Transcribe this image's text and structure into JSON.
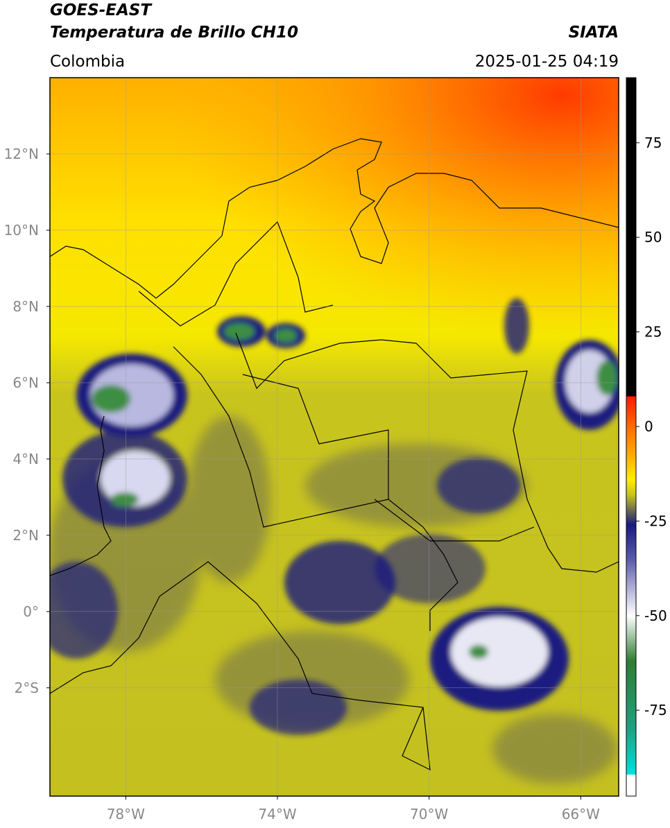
{
  "header": {
    "satellite": "GOES-EAST",
    "product": "Temperatura de Brillo CH10",
    "source": "SIATA",
    "region": "Colombia",
    "datetime": "2025-01-25 04:19"
  },
  "map": {
    "lonlim": [
      -80,
      -65
    ],
    "latlim": [
      -4.84,
      14
    ],
    "xticks": [
      {
        "value": -78,
        "label": "78°W"
      },
      {
        "value": -74,
        "label": "74°W"
      },
      {
        "value": -70,
        "label": "70°W"
      },
      {
        "value": -66,
        "label": "66°W"
      }
    ],
    "yticks": [
      {
        "value": 12,
        "label": "12°N"
      },
      {
        "value": 10,
        "label": "10°N"
      },
      {
        "value": 8,
        "label": "8°N"
      },
      {
        "value": 6,
        "label": "6°N"
      },
      {
        "value": 4,
        "label": "4°N"
      },
      {
        "value": 2,
        "label": "2°N"
      },
      {
        "value": 0,
        "label": "0°"
      },
      {
        "value": -2,
        "label": "2°S"
      }
    ],
    "grid": true
  },
  "colorbar": {
    "lim": [
      -97.7,
      92.2
    ],
    "ticks": [
      75,
      50,
      25,
      0,
      -25,
      -50,
      -75
    ],
    "colormap": [
      {
        "value": 92.2,
        "color": "#000000"
      },
      {
        "value": 8,
        "color": "#000000"
      },
      {
        "value": 8,
        "color": "#ff1a00"
      },
      {
        "value": 0,
        "color": "#ff6a00"
      },
      {
        "value": -8,
        "color": "#ffb000"
      },
      {
        "value": -14,
        "color": "#ffee00"
      },
      {
        "value": -18,
        "color": "#c8c41e"
      },
      {
        "value": -22,
        "color": "#6e6e50"
      },
      {
        "value": -26,
        "color": "#1a1a80"
      },
      {
        "value": -35,
        "color": "#5a5aaa"
      },
      {
        "value": -50,
        "color": "#ffffff"
      },
      {
        "value": -62,
        "color": "#2e7d32"
      },
      {
        "value": -80,
        "color": "#20a080"
      },
      {
        "value": -92,
        "color": "#00e0e0"
      },
      {
        "value": -92,
        "color": "#ffffff"
      },
      {
        "value": -97.7,
        "color": "#ffffff"
      }
    ]
  }
}
